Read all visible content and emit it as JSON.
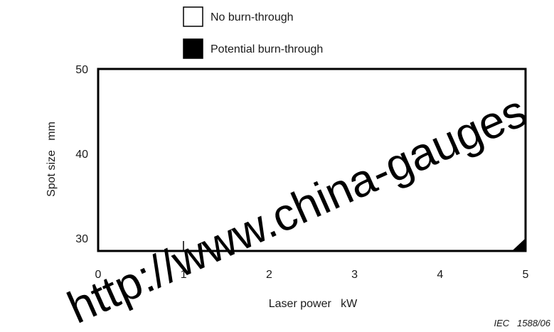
{
  "chart_data": {
    "type": "area",
    "title": "",
    "xlabel": "Laser power   kW",
    "ylabel": "Spot size   mm",
    "xlim": [
      0,
      5
    ],
    "ylim": [
      28.5,
      50
    ],
    "x_ticks": [
      "0",
      "1",
      "2",
      "3",
      "4",
      "5"
    ],
    "x_tick_values": [
      0,
      1,
      2,
      3,
      4,
      5
    ],
    "y_ticks": [
      "30",
      "40",
      "50"
    ],
    "y_tick_values": [
      30,
      40,
      50
    ],
    "legend": [
      {
        "name": "No burn-through",
        "fill": "#ffffff"
      },
      {
        "name": "Potential burn-through",
        "fill": "#000000"
      }
    ],
    "legend_position": "top",
    "grid": false,
    "series": [
      {
        "name": "Potential burn-through",
        "region": [
          [
            4.84,
            28.5
          ],
          [
            5.0,
            28.5
          ],
          [
            5.0,
            30.0
          ]
        ]
      }
    ],
    "colors": {
      "no_burn": "#ffffff",
      "burn": "#000000",
      "frame": "#000000"
    }
  },
  "figure_id": "IEC   1588/06",
  "watermark": "http://www.china-gauges"
}
